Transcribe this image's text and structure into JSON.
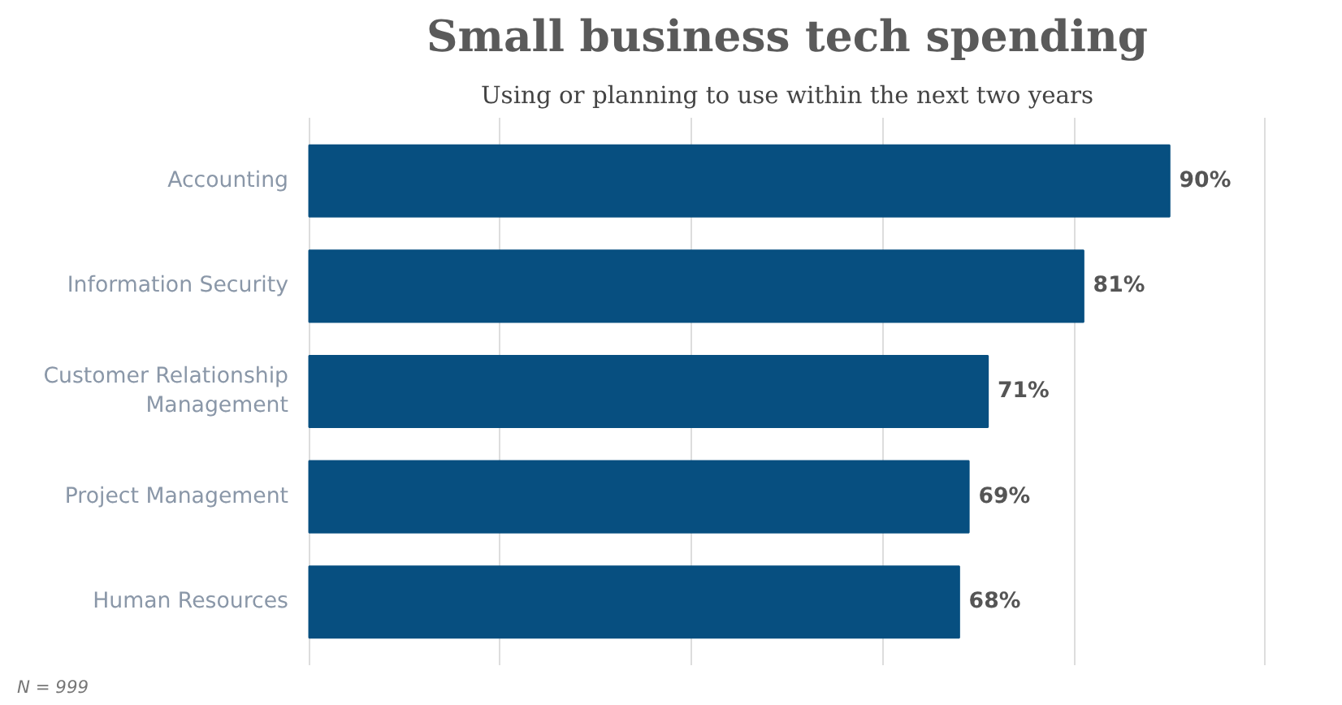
{
  "chart_data": {
    "type": "bar",
    "orientation": "horizontal",
    "title": "Small business tech spending",
    "subtitle": "Using or planning to use within the next two years",
    "categories": [
      "Accounting",
      "Information Security",
      "Customer Relationship Management",
      "Project Management",
      "Human Resources"
    ],
    "values": [
      90,
      81,
      71,
      69,
      68
    ],
    "value_labels": [
      "90%",
      "81%",
      "71%",
      "69%",
      "68%"
    ],
    "color": "#074f80",
    "xticks": [
      {
        "value": 0,
        "label": null
      },
      {
        "value": 20,
        "label": null
      },
      {
        "value": 40,
        "label": null
      },
      {
        "value": 60,
        "label": null
      },
      {
        "value": 80,
        "label": null
      },
      {
        "value": 100,
        "label": null
      }
    ],
    "grid": "x",
    "tick_labels": "y",
    "annotations": [
      "N = 999"
    ]
  }
}
